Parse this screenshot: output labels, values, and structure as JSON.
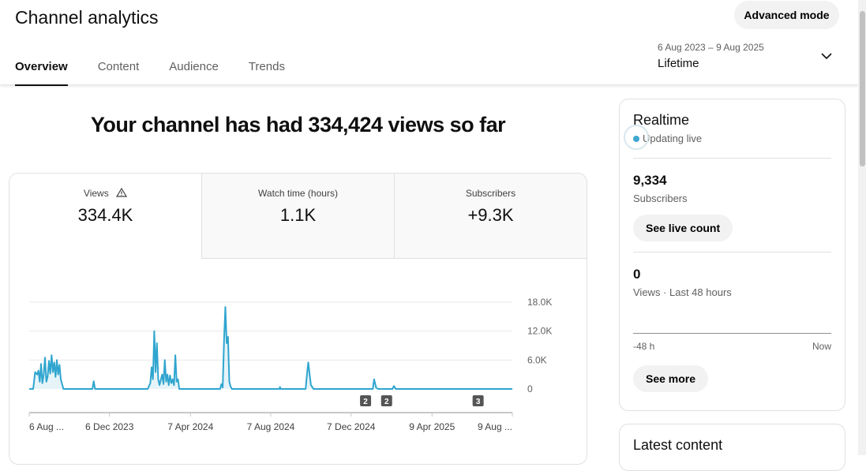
{
  "header": {
    "title": "Channel analytics",
    "advanced_mode": "Advanced mode",
    "date_range": "6 Aug 2023 – 9 Aug 2025",
    "period": "Lifetime"
  },
  "tabs": [
    {
      "label": "Overview"
    },
    {
      "label": "Content"
    },
    {
      "label": "Audience"
    },
    {
      "label": "Trends"
    }
  ],
  "headline": "Your channel has had 334,424 views so far",
  "metrics": [
    {
      "label": "Views",
      "value": "334.4K"
    },
    {
      "label": "Watch time (hours)",
      "value": "1.1K"
    },
    {
      "label": "Subscribers",
      "value": "+9.3K"
    }
  ],
  "realtime": {
    "title": "Realtime",
    "status": "Updating live",
    "subscribers": "9,334",
    "subscribers_label": "Subscribers",
    "live_count": "See live count",
    "views": "0",
    "views_label": "Views · Last 48 hours",
    "axis_start": "-48 h",
    "axis_end": "Now",
    "see_more": "See more"
  },
  "latest": {
    "title": "Latest content"
  },
  "colors": {
    "line": "#2fa5cf"
  },
  "chart_data": {
    "type": "line",
    "series": [
      {
        "name": "Views",
        "points": [
          [
            0,
            0
          ],
          [
            6,
            0
          ],
          [
            9,
            3500
          ],
          [
            12,
            3000
          ],
          [
            14,
            3800
          ],
          [
            16,
            1500
          ],
          [
            18,
            5200
          ],
          [
            20,
            1200
          ],
          [
            22,
            3000
          ],
          [
            24,
            6500
          ],
          [
            26,
            1500
          ],
          [
            28,
            2500
          ],
          [
            30,
            5800
          ],
          [
            32,
            3200
          ],
          [
            34,
            7000
          ],
          [
            36,
            3500
          ],
          [
            38,
            5500
          ],
          [
            40,
            2500
          ],
          [
            42,
            6000
          ],
          [
            44,
            3000
          ],
          [
            46,
            5000
          ],
          [
            48,
            2000
          ],
          [
            50,
            1000
          ],
          [
            52,
            0
          ],
          [
            96,
            0
          ],
          [
            98,
            1600
          ],
          [
            100,
            0
          ],
          [
            180,
            0
          ],
          [
            184,
            1200
          ],
          [
            186,
            4500
          ],
          [
            188,
            2000
          ],
          [
            190,
            12000
          ],
          [
            192,
            3500
          ],
          [
            194,
            9500
          ],
          [
            196,
            2000
          ],
          [
            198,
            800
          ],
          [
            202,
            3000
          ],
          [
            204,
            1000
          ],
          [
            206,
            6000
          ],
          [
            208,
            1500
          ],
          [
            210,
            3000
          ],
          [
            212,
            800
          ],
          [
            214,
            2800
          ],
          [
            216,
            1200
          ],
          [
            218,
            2000
          ],
          [
            220,
            800
          ],
          [
            222,
            7000
          ],
          [
            224,
            1500
          ],
          [
            226,
            2000
          ],
          [
            228,
            0
          ],
          [
            290,
            0
          ],
          [
            292,
            1000
          ],
          [
            294,
            300
          ],
          [
            296,
            10000
          ],
          [
            298,
            17000
          ],
          [
            300,
            9500
          ],
          [
            302,
            10800
          ],
          [
            304,
            1500
          ],
          [
            306,
            500
          ],
          [
            308,
            0
          ],
          [
            380,
            0
          ],
          [
            381,
            400
          ],
          [
            382,
            0
          ],
          [
            420,
            0
          ],
          [
            422,
            3000
          ],
          [
            424,
            5500
          ],
          [
            426,
            3000
          ],
          [
            428,
            800
          ],
          [
            432,
            0
          ],
          [
            522,
            0
          ],
          [
            524,
            2000
          ],
          [
            527,
            300
          ],
          [
            530,
            0
          ],
          [
            552,
            0
          ],
          [
            554,
            600
          ],
          [
            557,
            0
          ],
          [
            734,
            0
          ]
        ]
      }
    ],
    "x_ticks": [
      "6 Aug ...",
      "6 Dec 2023",
      "7 Apr 2024",
      "7 Aug 2024",
      "7 Dec 2024",
      "9 Apr 2025",
      "9 Aug ..."
    ],
    "x_tick_days": [
      0,
      122,
      245,
      367,
      489,
      612,
      734
    ],
    "y_ticks": [
      "18.0K",
      "12.0K",
      "6.0K",
      "0"
    ],
    "y_tick_values": [
      18000,
      12000,
      6000,
      0
    ],
    "ylim": [
      0,
      18000
    ],
    "xlim_days": [
      0,
      734
    ],
    "markers": [
      {
        "label": "2",
        "day": 511
      },
      {
        "label": "2",
        "day": 543
      },
      {
        "label": "3",
        "day": 682
      }
    ]
  }
}
